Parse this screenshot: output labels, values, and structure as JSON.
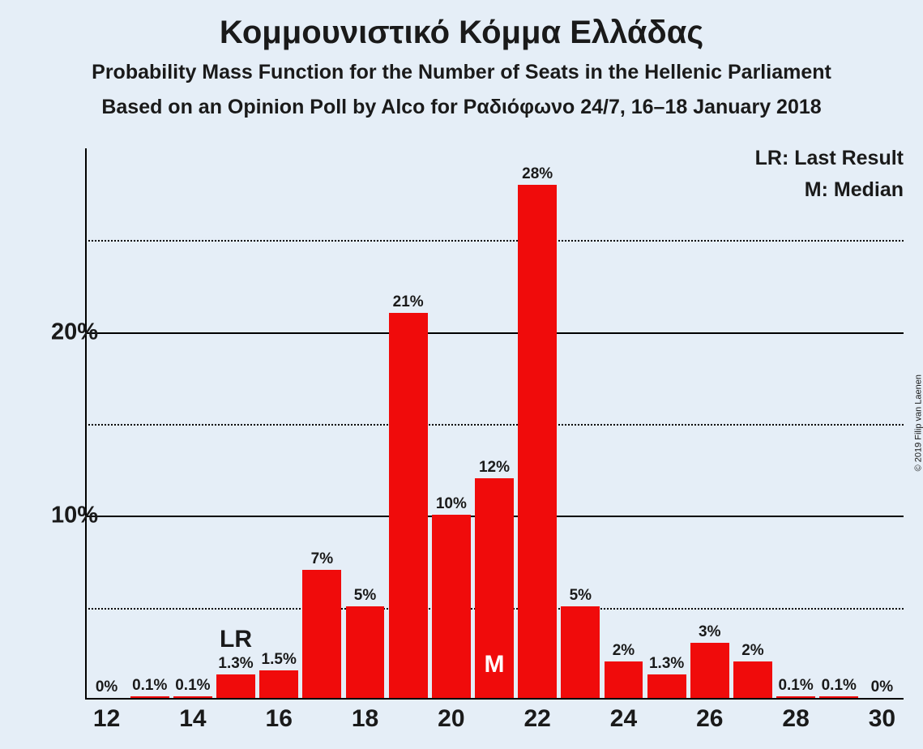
{
  "title": "Κομμουνιστικό Κόμμα Ελλάδας",
  "subtitle1": "Probability Mass Function for the Number of Seats in the Hellenic Parliament",
  "subtitle2": "Based on an Opinion Poll by Alco for Ραδιόφωνο 24/7, 16–18 January 2018",
  "legend": {
    "lr": "LR: Last Result",
    "m": "M: Median"
  },
  "copyright": "© 2019 Filip van Laenen",
  "chart": {
    "type": "bar",
    "x_start": 12,
    "x_end": 30,
    "ymax": 30,
    "bar_color": "#f00b0b",
    "background_color": "#e5eef7",
    "grid_color_major": "#000000",
    "grid_color_minor": "#000000",
    "title_fontsize": 40,
    "subtitle_fontsize": 25,
    "axis_label_fontsize": 29,
    "bar_label_fontsize": 19,
    "xtick_fontsize": 30,
    "yticks_major": [
      10,
      20
    ],
    "yticks_minor": [
      5,
      15,
      25
    ],
    "xticks": [
      12,
      14,
      16,
      18,
      20,
      22,
      24,
      26,
      28,
      30
    ],
    "lr_x": 15,
    "median_x": 21,
    "lr_text": "LR",
    "median_text": "M",
    "bars": [
      {
        "x": 12,
        "val": 0,
        "label": "0%"
      },
      {
        "x": 13,
        "val": 0.1,
        "label": "0.1%"
      },
      {
        "x": 14,
        "val": 0.1,
        "label": "0.1%"
      },
      {
        "x": 15,
        "val": 1.3,
        "label": "1.3%"
      },
      {
        "x": 16,
        "val": 1.5,
        "label": "1.5%"
      },
      {
        "x": 17,
        "val": 7,
        "label": "7%"
      },
      {
        "x": 18,
        "val": 5,
        "label": "5%"
      },
      {
        "x": 19,
        "val": 21,
        "label": "21%"
      },
      {
        "x": 20,
        "val": 10,
        "label": "10%"
      },
      {
        "x": 21,
        "val": 12,
        "label": "12%"
      },
      {
        "x": 22,
        "val": 28,
        "label": "28%"
      },
      {
        "x": 23,
        "val": 5,
        "label": "5%"
      },
      {
        "x": 24,
        "val": 2,
        "label": "2%"
      },
      {
        "x": 25,
        "val": 1.3,
        "label": "1.3%"
      },
      {
        "x": 26,
        "val": 3,
        "label": "3%"
      },
      {
        "x": 27,
        "val": 2,
        "label": "2%"
      },
      {
        "x": 28,
        "val": 0.1,
        "label": "0.1%"
      },
      {
        "x": 29,
        "val": 0.1,
        "label": "0.1%"
      },
      {
        "x": 30,
        "val": 0,
        "label": "0%"
      }
    ]
  }
}
